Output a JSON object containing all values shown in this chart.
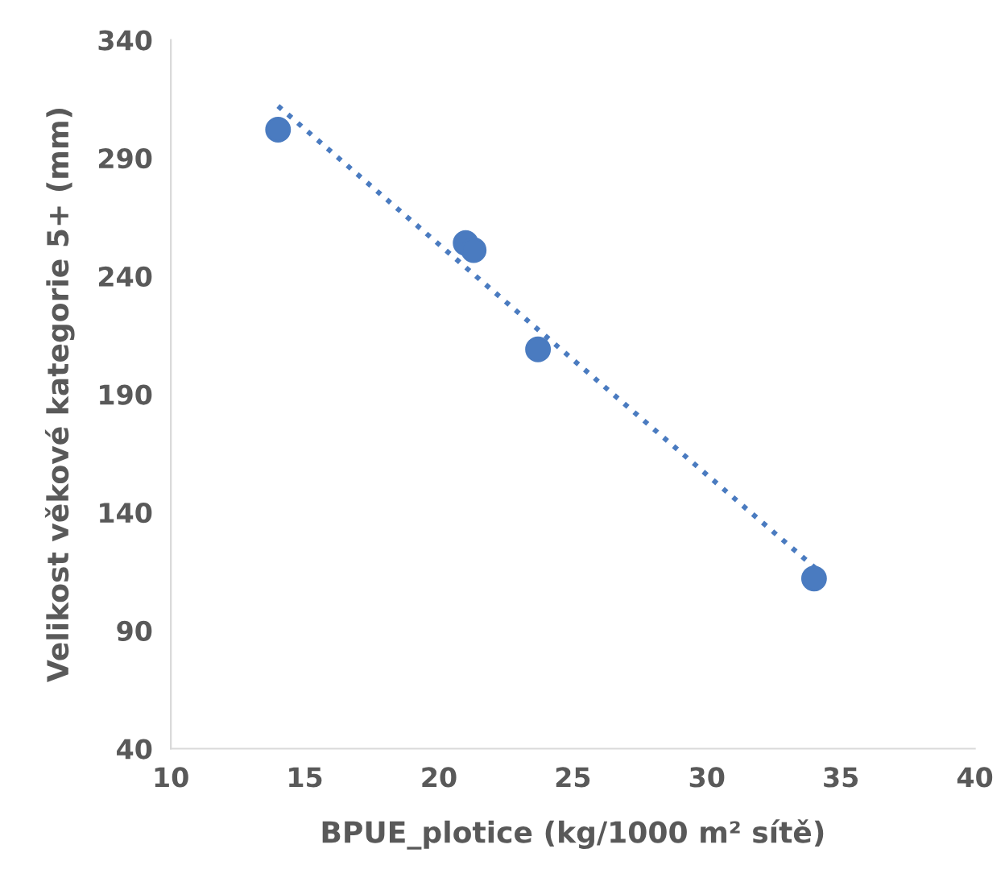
{
  "chart_data": {
    "type": "scatter",
    "xlabel": "BPUE_plotice (kg/1000 m² sítě)",
    "ylabel": "Velikost věkové kategorie 5+ (mm)",
    "xlim": [
      10,
      40
    ],
    "xticks": [
      10,
      15,
      20,
      25,
      30,
      35,
      40
    ],
    "ylim": [
      40,
      340
    ],
    "yticks": [
      40,
      90,
      140,
      190,
      240,
      290,
      340
    ],
    "grid": false,
    "series": [
      {
        "color": "#4a7bc0",
        "marker": "circle",
        "x": [
          14.0,
          21.0,
          21.3,
          23.7,
          34.0
        ],
        "values": [
          302,
          254,
          251,
          209,
          112
        ]
      },
      {
        "type": "line",
        "color": "#4a7bc0",
        "line_style": "dotted",
        "marker": "none",
        "x": [
          14.0,
          34.3
        ],
        "values": [
          312,
          114
        ]
      }
    ]
  }
}
